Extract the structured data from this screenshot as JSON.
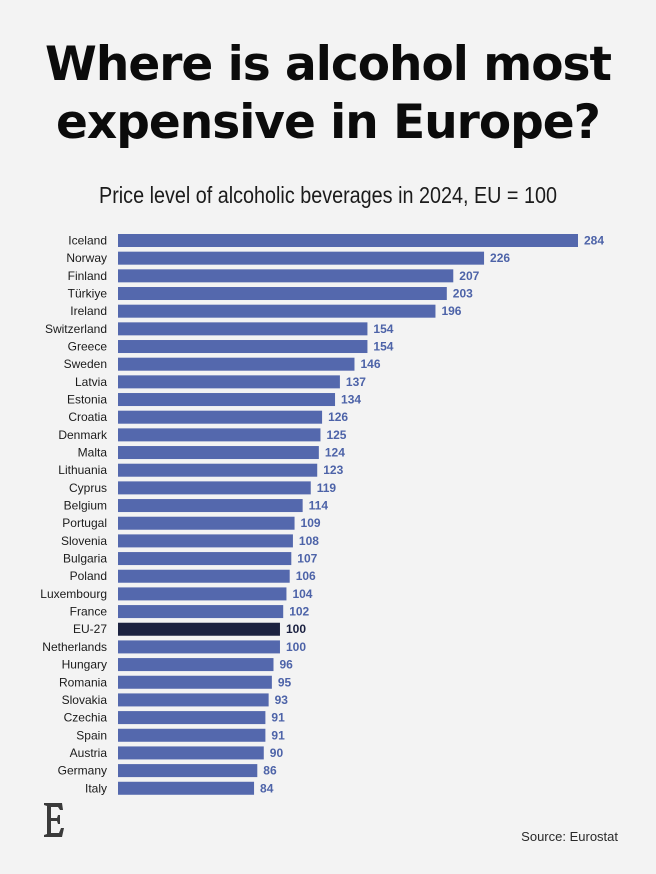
{
  "header": {
    "title_line1": "Where is alcohol most",
    "title_line2": "expensive in Europe?",
    "subtitle": "Price level of alcoholic beverages in 2024, EU = 100"
  },
  "footer": {
    "source": "Source: Eurostat",
    "logo_icon": "economist-e-logo-icon"
  },
  "colors": {
    "bar": "#5468ad",
    "highlight_bar": "#1c2240",
    "value_label": "#4d63a8",
    "background": "#f3f3f3"
  },
  "chart_data": {
    "type": "bar",
    "orientation": "horizontal",
    "title": "Where is alcohol most expensive in Europe?",
    "subtitle": "Price level of alcoholic beverages in 2024, EU = 100",
    "categories": [
      "Iceland",
      "Norway",
      "Finland",
      "Türkiye",
      "Ireland",
      "Switzerland",
      "Greece",
      "Sweden",
      "Latvia",
      "Estonia",
      "Croatia",
      "Denmark",
      "Malta",
      "Lithuania",
      "Cyprus",
      "Belgium",
      "Portugal",
      "Slovenia",
      "Bulgaria",
      "Poland",
      "Luxembourg",
      "France",
      "EU-27",
      "Netherlands",
      "Hungary",
      "Romania",
      "Slovakia",
      "Czechia",
      "Spain",
      "Austria",
      "Germany",
      "Italy"
    ],
    "values": [
      284,
      226,
      207,
      203,
      196,
      154,
      154,
      146,
      137,
      134,
      126,
      125,
      124,
      123,
      119,
      114,
      109,
      108,
      107,
      106,
      104,
      102,
      100,
      100,
      96,
      95,
      93,
      91,
      91,
      90,
      86,
      84
    ],
    "highlight": "EU-27",
    "xlim": [
      0,
      284
    ],
    "grid": false,
    "data_labels": true
  }
}
